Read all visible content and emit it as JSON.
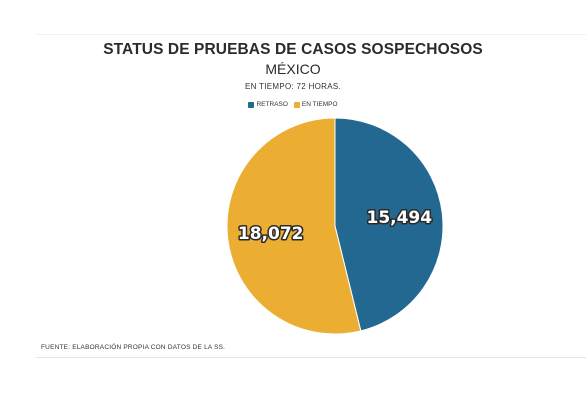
{
  "chart_data": {
    "type": "pie",
    "title": "STATUS DE PRUEBAS DE CASOS SOSPECHOSOS",
    "subtitle": "MÉXICO",
    "note": "EN TIEMPO: 72 HORAS.",
    "legend_position": "top-center",
    "series": [
      {
        "name": "RETRASO",
        "value": 15494,
        "label": "15,494",
        "color": "#236891"
      },
      {
        "name": "EN TIEMPO",
        "value": 18072,
        "label": "18,072",
        "color": "#ebae33"
      }
    ],
    "source": "FUENTE: ELABORACIÓN PROPIA CON DATOS DE LA SS."
  }
}
